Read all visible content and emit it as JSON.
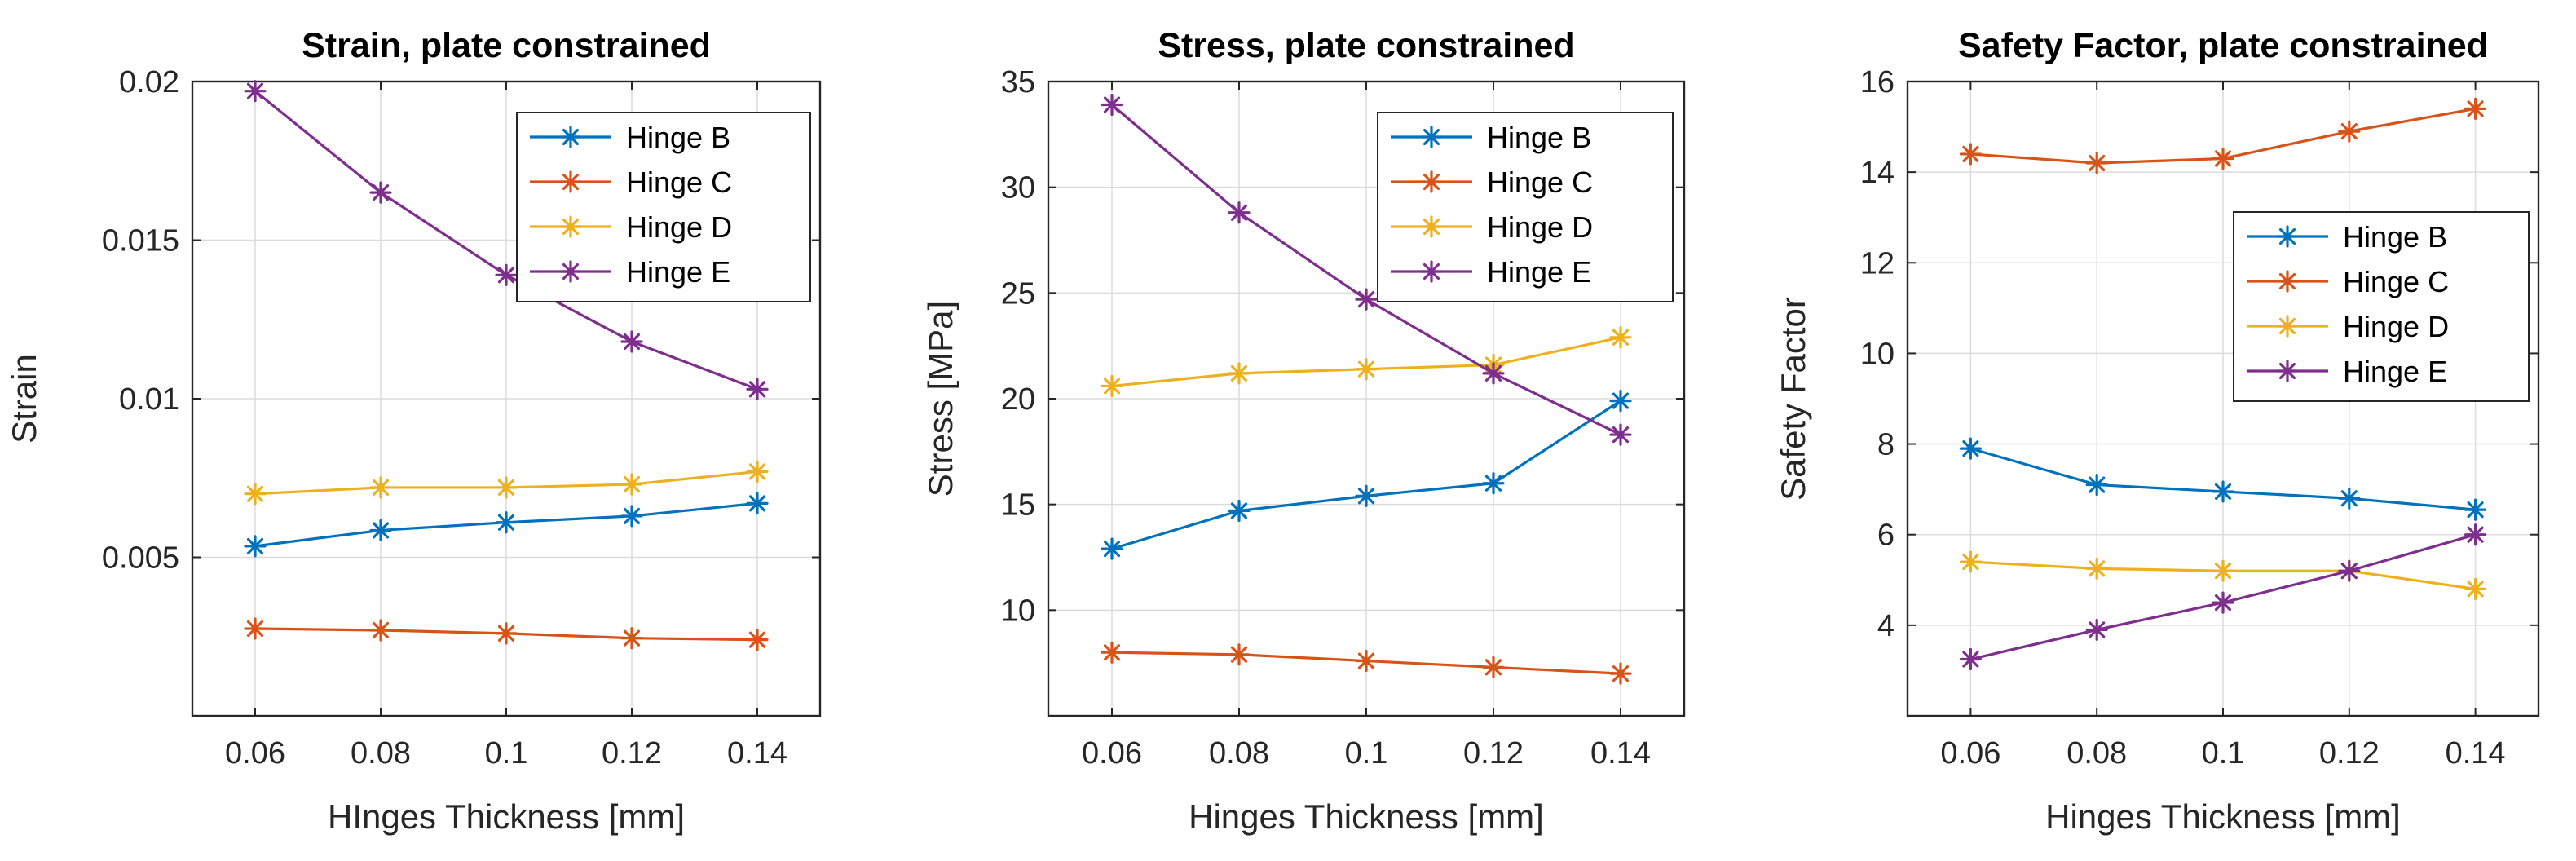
{
  "chart_data": [
    {
      "type": "line",
      "title": "Strain, plate constrained",
      "xlabel": "HInges Thickness [mm]",
      "ylabel": "Strain",
      "x": [
        0.06,
        0.08,
        0.1,
        0.12,
        0.14
      ],
      "x_tick_labels": [
        "0.06",
        "0.08",
        "0.1",
        "0.12",
        "0.14"
      ],
      "y_ticks": [
        0.005,
        0.01,
        0.015,
        0.02
      ],
      "y_tick_labels": [
        "0.005",
        "0.01",
        "0.015",
        "0.02"
      ],
      "xlim": [
        0.05,
        0.15
      ],
      "ylim": [
        0,
        0.02
      ],
      "grid": true,
      "legend_position": "top-right",
      "series": [
        {
          "name": "Hinge B",
          "color": "#0072BD",
          "values": [
            0.00535,
            0.00585,
            0.0061,
            0.0063,
            0.0067
          ]
        },
        {
          "name": "Hinge C",
          "color": "#D95319",
          "values": [
            0.00275,
            0.0027,
            0.0026,
            0.00245,
            0.0024
          ]
        },
        {
          "name": "Hinge D",
          "color": "#EDB120",
          "values": [
            0.007,
            0.0072,
            0.0072,
            0.0073,
            0.0077
          ]
        },
        {
          "name": "Hinge E",
          "color": "#7E2F8E",
          "values": [
            0.0197,
            0.0165,
            0.0139,
            0.0118,
            0.0103
          ]
        }
      ]
    },
    {
      "type": "line",
      "title": "Stress, plate constrained",
      "xlabel": "Hinges Thickness [mm]",
      "ylabel": "Stress [MPa]",
      "x": [
        0.06,
        0.08,
        0.1,
        0.12,
        0.14
      ],
      "x_tick_labels": [
        "0.06",
        "0.08",
        "0.1",
        "0.12",
        "0.14"
      ],
      "y_ticks": [
        10,
        15,
        20,
        25,
        30,
        35
      ],
      "y_tick_labels": [
        "10",
        "15",
        "20",
        "25",
        "30",
        "35"
      ],
      "xlim": [
        0.05,
        0.15
      ],
      "ylim": [
        5,
        35
      ],
      "grid": true,
      "legend_position": "top-right",
      "series": [
        {
          "name": "Hinge B",
          "color": "#0072BD",
          "values": [
            12.9,
            14.7,
            15.4,
            16.0,
            19.9
          ]
        },
        {
          "name": "Hinge C",
          "color": "#D95319",
          "values": [
            8.0,
            7.9,
            7.6,
            7.3,
            7.0
          ]
        },
        {
          "name": "Hinge D",
          "color": "#EDB120",
          "values": [
            20.6,
            21.2,
            21.4,
            21.6,
            22.9
          ]
        },
        {
          "name": "Hinge E",
          "color": "#7E2F8E",
          "values": [
            33.9,
            28.8,
            24.7,
            21.2,
            18.3
          ]
        }
      ]
    },
    {
      "type": "line",
      "title": "Safety Factor, plate constrained",
      "xlabel": "Hinges Thickness [mm]",
      "ylabel": "Safety Factor",
      "x": [
        0.06,
        0.08,
        0.1,
        0.12,
        0.14
      ],
      "x_tick_labels": [
        "0.06",
        "0.08",
        "0.1",
        "0.12",
        "0.14"
      ],
      "y_ticks": [
        4,
        6,
        8,
        10,
        12,
        14,
        16
      ],
      "y_tick_labels": [
        "4",
        "6",
        "8",
        "10",
        "12",
        "14",
        "16"
      ],
      "xlim": [
        0.05,
        0.15
      ],
      "ylim": [
        2,
        16
      ],
      "grid": true,
      "legend_position": "right",
      "series": [
        {
          "name": "Hinge B",
          "color": "#0072BD",
          "values": [
            7.9,
            7.1,
            6.95,
            6.8,
            6.55
          ]
        },
        {
          "name": "Hinge C",
          "color": "#D95319",
          "values": [
            14.4,
            14.2,
            14.3,
            14.9,
            15.4
          ]
        },
        {
          "name": "Hinge D",
          "color": "#EDB120",
          "values": [
            5.4,
            5.25,
            5.2,
            5.2,
            4.8
          ]
        },
        {
          "name": "Hinge E",
          "color": "#7E2F8E",
          "values": [
            3.25,
            3.9,
            4.5,
            5.2,
            6.0
          ]
        }
      ]
    }
  ]
}
